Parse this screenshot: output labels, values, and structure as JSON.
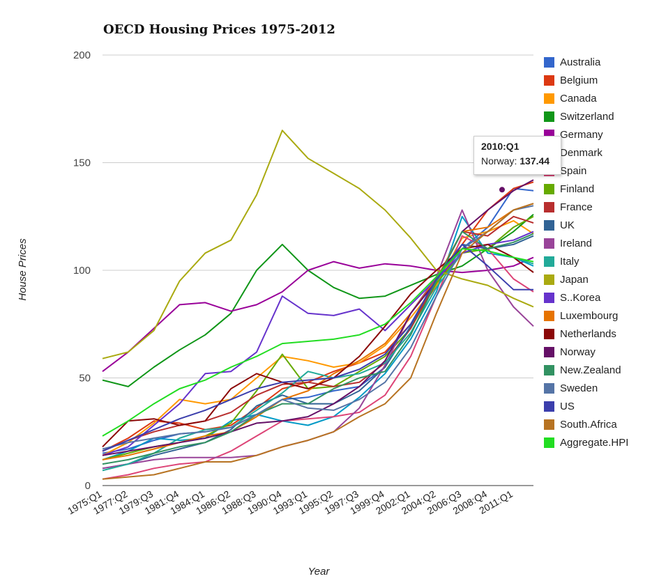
{
  "chart_data": {
    "type": "line",
    "title": "OECD Housing Prices 1975-2012",
    "xlabel": "Year",
    "ylabel": "House Prices",
    "ylim": [
      0,
      200
    ],
    "y_ticks": [
      "0",
      "50",
      "100",
      "150",
      "200"
    ],
    "x_tick_labels": [
      "1975:Q1",
      "1977:Q2",
      "1979:Q3",
      "1981:Q4",
      "1984:Q1",
      "1986:Q2",
      "1988:Q3",
      "1990:Q4",
      "1993:Q1",
      "1995:Q2",
      "1997:Q3",
      "1999:Q4",
      "2002:Q1",
      "2004:Q2",
      "2006:Q3",
      "2008:Q4",
      "2011:Q1"
    ],
    "x_points": [
      1975.0,
      1977.25,
      1979.5,
      1981.75,
      1984.0,
      1986.25,
      1988.5,
      1990.75,
      1993.0,
      1995.25,
      1997.5,
      1999.75,
      2002.0,
      2004.25,
      2006.5,
      2008.75,
      2011.0,
      2012.75
    ],
    "x_range": [
      1975.0,
      2012.75
    ],
    "grid": true,
    "legend_position": "right",
    "series": [
      {
        "name": "Australia",
        "color": "#3366cc",
        "values": [
          15,
          17,
          21,
          24,
          25,
          27,
          33,
          40,
          41,
          44,
          46,
          55,
          74,
          95,
          110,
          120,
          138,
          137
        ]
      },
      {
        "name": "Belgium",
        "color": "#dc3912",
        "values": [
          16,
          22,
          30,
          29,
          26,
          28,
          36,
          45,
          48,
          53,
          57,
          62,
          75,
          93,
          112,
          128,
          138,
          141
        ]
      },
      {
        "name": "Canada",
        "color": "#ff9900",
        "values": [
          14,
          20,
          29,
          40,
          38,
          40,
          50,
          60,
          58,
          55,
          57,
          65,
          78,
          93,
          115,
          118,
          123,
          117
        ]
      },
      {
        "name": "Switzerland",
        "color": "#109618",
        "values": [
          49,
          46,
          55,
          63,
          70,
          80,
          100,
          112,
          100,
          92,
          87,
          88,
          93,
          98,
          102,
          110,
          118,
          126
        ]
      },
      {
        "name": "Germany",
        "color": "#990099",
        "values": [
          53,
          62,
          73,
          84,
          85,
          81,
          84,
          90,
          100,
          104,
          101,
          103,
          102,
          100,
          99,
          100,
          102,
          106
        ]
      },
      {
        "name": "Denmark",
        "color": "#0099c6",
        "values": [
          12,
          16,
          22,
          21,
          22,
          30,
          33,
          30,
          28,
          32,
          41,
          52,
          68,
          90,
          125,
          108,
          106,
          102
        ]
      },
      {
        "name": "Spain",
        "color": "#dd4477",
        "values": [
          3,
          5,
          8,
          10,
          11,
          16,
          23,
          30,
          31,
          32,
          34,
          42,
          60,
          88,
          116,
          110,
          96,
          90
        ]
      },
      {
        "name": "Finland",
        "color": "#66aa00",
        "values": [
          12,
          15,
          18,
          20,
          23,
          29,
          44,
          61,
          45,
          46,
          53,
          60,
          73,
          94,
          108,
          110,
          120,
          125
        ]
      },
      {
        "name": "France",
        "color": "#b82e2e",
        "values": [
          16,
          21,
          25,
          28,
          30,
          34,
          42,
          47,
          48,
          46,
          48,
          57,
          73,
          95,
          118,
          116,
          125,
          122
        ]
      },
      {
        "name": "UK",
        "color": "#316395",
        "values": [
          8,
          10,
          14,
          17,
          20,
          26,
          37,
          42,
          38,
          38,
          44,
          55,
          74,
          97,
          112,
          110,
          112,
          116
        ]
      },
      {
        "name": "Ireland",
        "color": "#994499",
        "values": [
          8,
          10,
          12,
          13,
          13,
          13,
          14,
          18,
          21,
          25,
          36,
          56,
          80,
          97,
          128,
          100,
          83,
          74
        ]
      },
      {
        "name": "Italy",
        "color": "#22aa99",
        "values": [
          7,
          10,
          15,
          22,
          26,
          27,
          35,
          43,
          53,
          50,
          52,
          57,
          71,
          92,
          108,
          112,
          106,
          103
        ]
      },
      {
        "name": "Japan",
        "color": "#aaaa11",
        "values": [
          59,
          62,
          72,
          95,
          108,
          114,
          135,
          165,
          152,
          145,
          138,
          128,
          115,
          100,
          96,
          93,
          87,
          83
        ]
      },
      {
        "name": "S..Korea",
        "color": "#6633cc",
        "values": [
          14,
          18,
          28,
          38,
          52,
          53,
          62,
          88,
          80,
          79,
          82,
          72,
          84,
          96,
          108,
          112,
          114,
          118
        ]
      },
      {
        "name": "Luxembourg",
        "color": "#e67300",
        "values": [
          12,
          14,
          17,
          20,
          23,
          25,
          32,
          40,
          44,
          52,
          58,
          66,
          80,
          96,
          118,
          120,
          128,
          131
        ]
      },
      {
        "name": "Netherlands",
        "color": "#8b0707",
        "values": [
          18,
          30,
          31,
          28,
          30,
          45,
          52,
          48,
          45,
          50,
          60,
          74,
          89,
          100,
          110,
          112,
          106,
          99
        ]
      },
      {
        "name": "Norway",
        "color": "#651067",
        "values": [
          14,
          16,
          18,
          20,
          22,
          25,
          29,
          30,
          32,
          38,
          46,
          58,
          80,
          95,
          118,
          128,
          137,
          142
        ]
      },
      {
        "name": "New.Zealand",
        "color": "#329262",
        "values": [
          10,
          12,
          15,
          18,
          20,
          25,
          33,
          38,
          38,
          45,
          50,
          53,
          70,
          95,
          118,
          110,
          113,
          117
        ]
      },
      {
        "name": "Sweden",
        "color": "#5574a6",
        "values": [
          17,
          20,
          22,
          24,
          25,
          27,
          33,
          40,
          36,
          35,
          40,
          48,
          64,
          88,
          110,
          118,
          128,
          130
        ]
      },
      {
        "name": "US",
        "color": "#3b3eac",
        "values": [
          16,
          21,
          26,
          31,
          35,
          40,
          45,
          48,
          49,
          50,
          54,
          61,
          75,
          96,
          112,
          102,
          91,
          91
        ]
      },
      {
        "name": "South.Africa",
        "color": "#b77322",
        "values": [
          3,
          4,
          5,
          8,
          11,
          11,
          14,
          18,
          21,
          25,
          32,
          38,
          50,
          80,
          108,
          118,
          128,
          131
        ]
      },
      {
        "name": "Aggregate.HPI",
        "color": "#22dd22",
        "values": [
          23,
          30,
          38,
          45,
          49,
          55,
          60,
          66,
          67,
          68,
          70,
          75,
          85,
          97,
          110,
          109,
          106,
          104
        ]
      }
    ],
    "tooltip": {
      "title": "2010:Q1",
      "label": "Norway:",
      "value": "137.44",
      "x": 2010.0
    }
  }
}
